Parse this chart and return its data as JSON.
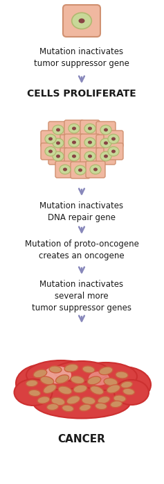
{
  "bg_color": "#ffffff",
  "arrow_color": "#8888bb",
  "cell_outer_color": "#f0b8a0",
  "cell_outer_edge": "#d09070",
  "cell_inner_color": "#c8d898",
  "cell_inner_edge": "#b0b870",
  "cell_nucleus_color": "#884444",
  "cancer_bg_color": "#d94040",
  "cancer_bg_edge": "#cc3030",
  "cancer_cell_outer": "#cc9060",
  "cancer_cell_edge": "#cc6040",
  "cancer_cell_inner": "#c8a850",
  "cancer_highlight_color": "#f5c8b8",
  "text_color": "#1a1a1a",
  "title1": "Mutation inactivates\ntumor suppressor gene",
  "title2": "CELLS PROLIFERATE",
  "title3": "Mutation inactivates\nDNA repair gene",
  "title4": "Mutation of proto-oncogene\ncreates an oncogene",
  "title5": "Mutation inactivates\nseveral more\ntumor suppressor genes",
  "title6": "CANCER",
  "figsize": [
    2.37,
    6.97
  ],
  "dpi": 100
}
